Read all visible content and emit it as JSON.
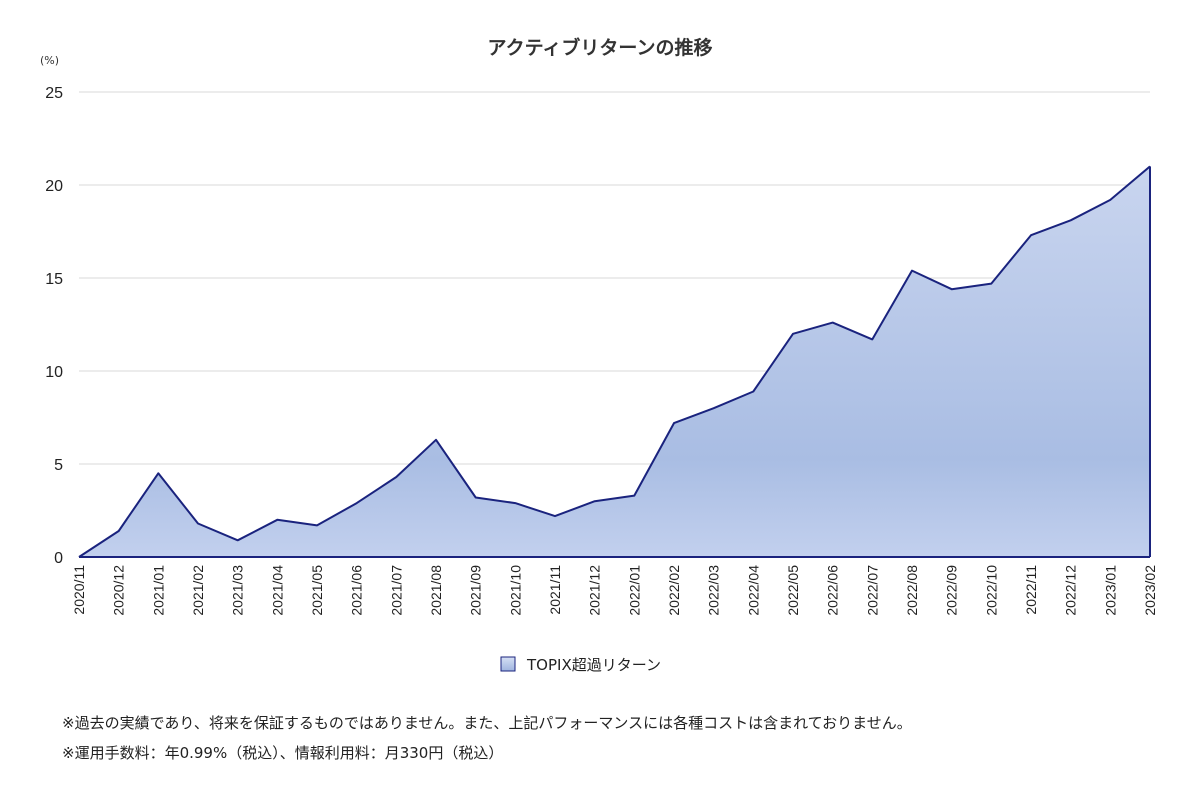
{
  "chart_data": {
    "type": "area",
    "title": "アクティブリターンの推移",
    "ylabel": "(%)",
    "xlabel": "",
    "ylim": [
      0,
      25
    ],
    "yticks": [
      0,
      5,
      10,
      15,
      20,
      25
    ],
    "grid": true,
    "legend_position": "bottom",
    "categories": [
      "2020/11",
      "2020/12",
      "2021/01",
      "2021/02",
      "2021/03",
      "2021/04",
      "2021/05",
      "2021/06",
      "2021/07",
      "2021/08",
      "2021/09",
      "2021/10",
      "2021/11",
      "2021/12",
      "2022/01",
      "2022/02",
      "2022/03",
      "2022/04",
      "2022/05",
      "2022/06",
      "2022/07",
      "2022/08",
      "2022/09",
      "2022/10",
      "2022/11",
      "2022/12",
      "2023/01",
      "2023/02"
    ],
    "series": [
      {
        "name": "TOPIX超過リターン",
        "color": "#1a237e",
        "fill": "#a9bde3",
        "values": [
          0.0,
          1.4,
          4.5,
          1.8,
          0.9,
          2.0,
          1.7,
          2.9,
          4.3,
          6.3,
          3.2,
          2.9,
          2.2,
          3.0,
          3.3,
          7.2,
          8.0,
          8.9,
          12.0,
          12.6,
          11.7,
          15.4,
          14.4,
          14.7,
          17.3,
          18.1,
          19.2,
          21.0
        ]
      }
    ]
  },
  "notes": {
    "line1": "※過去の実績であり、将来を保証するものではありません。また、上記パフォーマンスには各種コストは含まれておりません。",
    "line2": "※運用手数料：年0.99%（税込）、情報利用料：月330円（税込）"
  }
}
